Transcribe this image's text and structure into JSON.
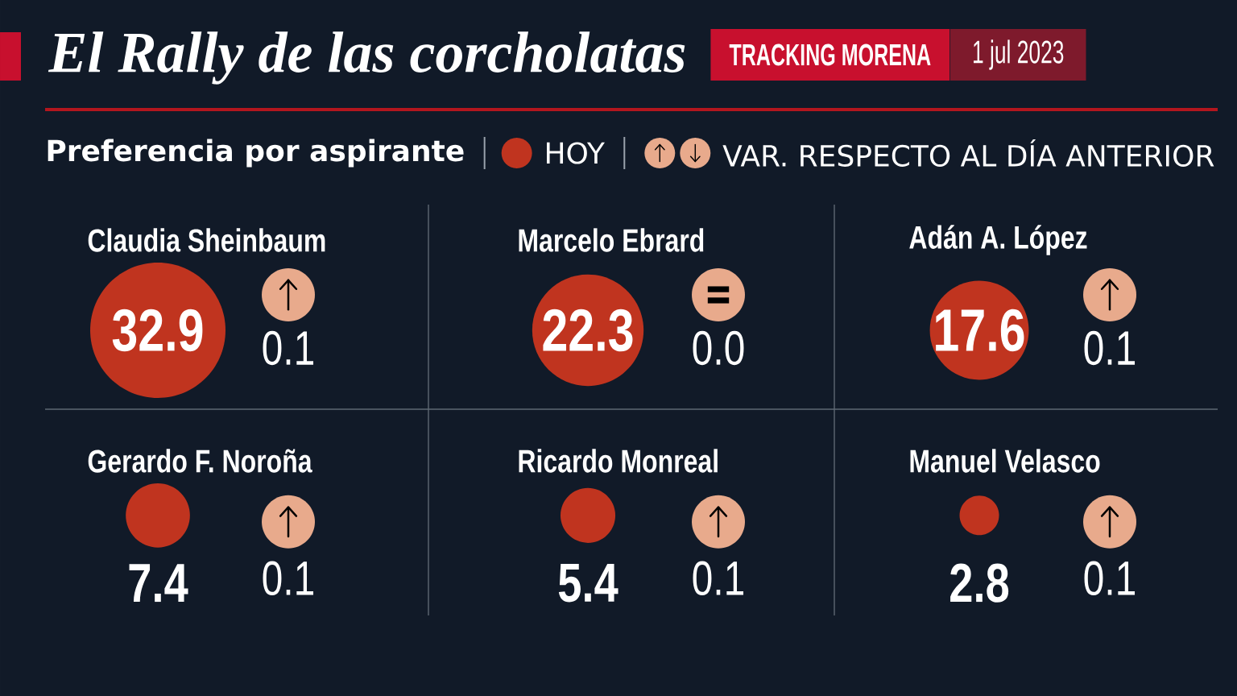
{
  "chart_data": {
    "type": "other",
    "title": "El Rally de las corcholatas",
    "subtitle": "Preferencia por aspirante",
    "categories": [
      "Claudia Sheinbaum",
      "Marcelo Ebrard",
      "Adán A. López",
      "Gerardo F. Noroña",
      "Ricardo Monreal",
      "Manuel Velasco"
    ],
    "series": [
      {
        "name": "HOY",
        "color": "#c0341f",
        "values": [
          32.9,
          22.3,
          17.6,
          7.4,
          5.4,
          2.8
        ],
        "value_labels": [
          "32.9",
          "22.3",
          "17.6",
          "7.4",
          "5.4",
          "2.8"
        ]
      },
      {
        "name": "VAR. RESPECTO AL DÍA ANTERIOR",
        "color": "#e8aa8c",
        "values": [
          0.1,
          0,
          0.1,
          0.1,
          0.1,
          0.1
        ],
        "value_labels": [
          "0.1",
          "0.0",
          "0.1",
          "0.1",
          "0.1",
          "0.1"
        ]
      }
    ],
    "legend": "top",
    "annotations": [
      "TRACKING MORENA",
      "1 jul 2023"
    ]
  }
}
